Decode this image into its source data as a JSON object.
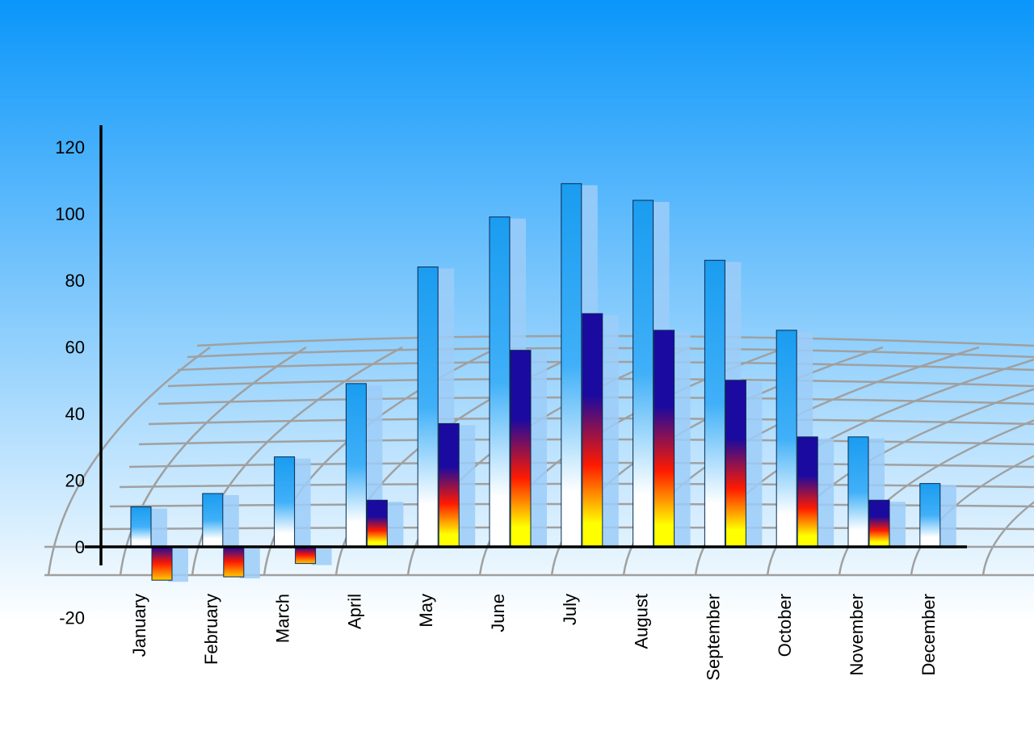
{
  "chart_data": {
    "type": "bar",
    "title": "",
    "xlabel": "",
    "ylabel": "",
    "ylim": [
      -20,
      120
    ],
    "yticks": [
      -20,
      0,
      20,
      40,
      60,
      80,
      100,
      120
    ],
    "grid": false,
    "categories": [
      "January",
      "February",
      "March",
      "April",
      "May",
      "June",
      "July",
      "August",
      "September",
      "October",
      "November",
      "December"
    ],
    "series": [
      {
        "values": [
          12,
          16,
          27,
          49,
          84,
          99,
          109,
          104,
          86,
          65,
          33,
          19
        ]
      },
      {
        "values": [
          -10,
          -9,
          -5,
          14,
          37,
          59,
          70,
          65,
          50,
          33,
          14,
          null
        ]
      }
    ],
    "colors": {
      "background_top": "#0a96fa",
      "background_bottom": "#ffffff",
      "series1": "#1a9cf0",
      "series2_top": "#1a0aa0",
      "series2_mid": "#ff1a00",
      "series2_bottom": "#ffff00",
      "floor_grid": "#a0a0a0",
      "axis": "#000000"
    }
  }
}
